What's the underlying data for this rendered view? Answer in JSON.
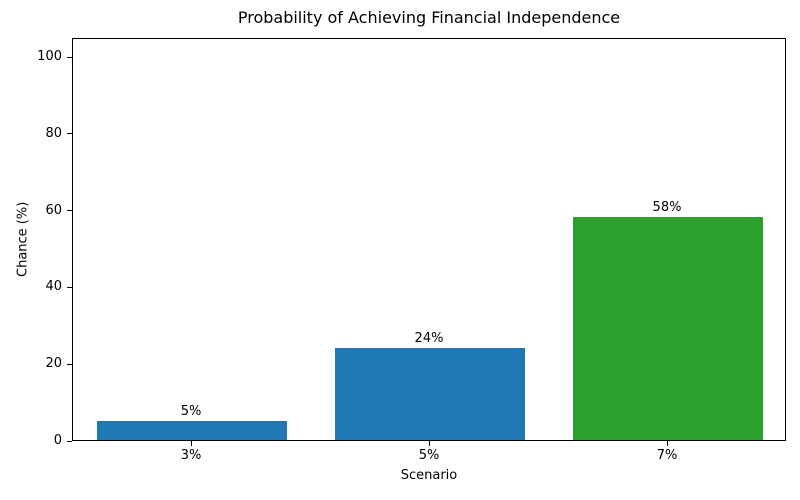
{
  "chart_data": {
    "type": "bar",
    "title": "Probability of Achieving Financial Independence",
    "xlabel": "Scenario",
    "ylabel": "Chance (%)",
    "categories": [
      "3%",
      "5%",
      "7%"
    ],
    "values": [
      5,
      24,
      58
    ],
    "bar_labels": [
      "5%",
      "24%",
      "58%"
    ],
    "bar_colors": [
      "#1f77b4",
      "#1f77b4",
      "#2ca02c"
    ],
    "yticks": [
      0,
      20,
      40,
      60,
      80,
      100
    ],
    "ylim": [
      0,
      105
    ],
    "grid": false,
    "legend": "none",
    "background_color": "#ffffff",
    "spine_color": "#000000",
    "text_color": "#000000"
  }
}
